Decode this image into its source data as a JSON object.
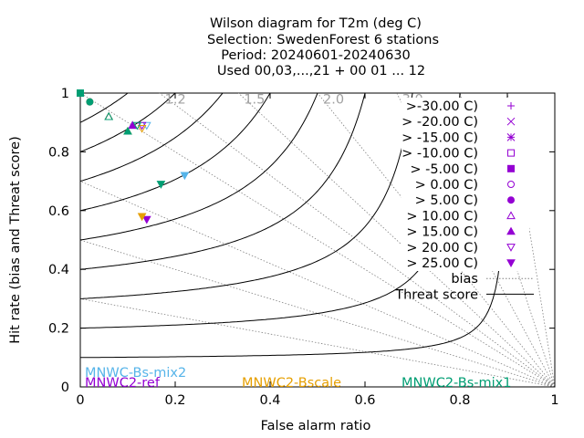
{
  "header": {
    "line1": "Wilson diagram  for T2m (deg C)",
    "line2": "Selection: SwedenForest      6 stations",
    "line3": "Period: 20240601-20240630",
    "line4": "Used 00,03,...,21 + 00 01 ... 12"
  },
  "axes": {
    "xlabel": "False alarm ratio",
    "ylabel": "Hit rate (bias and Threat score)",
    "x_ticks": [
      "0",
      "0.2",
      "0.4",
      "0.6",
      "0.8",
      "1"
    ],
    "y_ticks": [
      "0",
      "0.2",
      "0.4",
      "0.6",
      "0.8",
      "1"
    ]
  },
  "chart_data": {
    "type": "scatter",
    "title": "Wilson diagram  for T2m (deg C)",
    "xlabel": "False alarm ratio",
    "ylabel": "Hit rate (bias and Threat score)",
    "xlim": [
      0,
      1
    ],
    "ylim": [
      0,
      1
    ],
    "grid": false,
    "bias_isolines": [
      0.3,
      0.5,
      0.7,
      1.0,
      1.2,
      1.5,
      2.0,
      3.0,
      5.0,
      10.0
    ],
    "bias_labels": [
      "1.2",
      "1.5",
      "2.0",
      "3.0"
    ],
    "threat_score_isolines": [
      0.1,
      0.2,
      0.3,
      0.4,
      0.5,
      0.6,
      0.7,
      0.8,
      0.9
    ],
    "thresholds": [
      {
        "label": ">-30.00 C)",
        "marker": "plus"
      },
      {
        "label": "> -20.00 C)",
        "marker": "cross"
      },
      {
        "label": "> -15.00 C)",
        "marker": "star"
      },
      {
        "label": "> -10.00 C)",
        "marker": "square-open"
      },
      {
        "label": "> -5.00 C)",
        "marker": "square-filled"
      },
      {
        "label": "> 0.00 C)",
        "marker": "circle-open"
      },
      {
        "label": "> 5.00 C)",
        "marker": "circle-filled"
      },
      {
        "label": "> 10.00 C)",
        "marker": "triangle-open"
      },
      {
        "label": "> 15.00 C)",
        "marker": "triangle-filled"
      },
      {
        "label": "> 20.00 C)",
        "marker": "triangle-down-open"
      },
      {
        "label": "> 25.00 C)",
        "marker": "triangle-down-filled"
      }
    ],
    "line_legend": [
      {
        "label": "bias",
        "style": "dotted"
      },
      {
        "label": "Threat score",
        "style": "solid"
      }
    ],
    "series": [
      {
        "name": "MNWC-Bs-mix2",
        "color": "#56b4e9",
        "points": [
          {
            "x": 0.0,
            "y": 1.0,
            "marker": "square-filled"
          },
          {
            "x": 0.02,
            "y": 0.97,
            "marker": "circle-filled"
          },
          {
            "x": 0.06,
            "y": 0.92,
            "marker": "triangle-open"
          },
          {
            "x": 0.11,
            "y": 0.89,
            "marker": "triangle-filled"
          },
          {
            "x": 0.14,
            "y": 0.89,
            "marker": "triangle-down-open"
          },
          {
            "x": 0.22,
            "y": 0.72,
            "marker": "triangle-down-filled"
          }
        ]
      },
      {
        "name": "MNWC2-ref",
        "color": "#9400d3",
        "points": [
          {
            "x": 0.0,
            "y": 1.0,
            "marker": "square-filled"
          },
          {
            "x": 0.02,
            "y": 0.97,
            "marker": "circle-filled"
          },
          {
            "x": 0.06,
            "y": 0.92,
            "marker": "triangle-open"
          },
          {
            "x": 0.11,
            "y": 0.89,
            "marker": "triangle-filled"
          },
          {
            "x": 0.13,
            "y": 0.89,
            "marker": "triangle-down-open"
          },
          {
            "x": 0.14,
            "y": 0.57,
            "marker": "triangle-down-filled"
          }
        ]
      },
      {
        "name": "MNWC2-Bscale",
        "color": "#e69f00",
        "points": [
          {
            "x": 0.0,
            "y": 1.0,
            "marker": "square-filled"
          },
          {
            "x": 0.02,
            "y": 0.97,
            "marker": "circle-filled"
          },
          {
            "x": 0.06,
            "y": 0.92,
            "marker": "triangle-open"
          },
          {
            "x": 0.1,
            "y": 0.87,
            "marker": "triangle-filled"
          },
          {
            "x": 0.13,
            "y": 0.88,
            "marker": "triangle-down-open"
          },
          {
            "x": 0.13,
            "y": 0.58,
            "marker": "triangle-down-filled"
          }
        ]
      },
      {
        "name": "MNWC2-Bs-mix1",
        "color": "#009e73",
        "points": [
          {
            "x": 0.0,
            "y": 1.0,
            "marker": "square-filled"
          },
          {
            "x": 0.02,
            "y": 0.97,
            "marker": "circle-filled"
          },
          {
            "x": 0.06,
            "y": 0.92,
            "marker": "triangle-open"
          },
          {
            "x": 0.1,
            "y": 0.87,
            "marker": "triangle-filled"
          },
          {
            "x": 0.12,
            "y": 0.89,
            "marker": "triangle-down-open"
          },
          {
            "x": 0.17,
            "y": 0.69,
            "marker": "triangle-down-filled"
          }
        ]
      }
    ]
  },
  "colors": {
    "legend_marker": "#9400d3",
    "bias_line": "#808080",
    "threat_line": "#000000"
  }
}
